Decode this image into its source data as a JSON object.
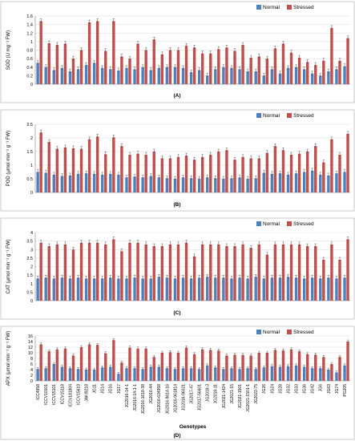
{
  "legend": {
    "normal": "Normal",
    "stressed": "Stressed",
    "position": "top-right"
  },
  "colors": {
    "normal": "#4F81BD",
    "stressed": "#C0504D",
    "grid": "#d9d9d9",
    "axis": "#808080",
    "panel_border": "#a6a6a6"
  },
  "genotypes": [
    "ICC4958",
    "ICCV10101",
    "ICCV15101",
    "ICCV15118",
    "ICCV181804",
    "ICCV15619",
    "JAKI9218",
    "JG11",
    "JG14",
    "JG16",
    "JG17",
    "JG2016-14-1",
    "JG2016-14-1-1",
    "JG2016-1618-38",
    "JG2016-44",
    "JG2016-634958",
    "JG2016-9614-16",
    "JG2016-961814",
    "JG2016-96021",
    "JG2017-47",
    "JG2017-56601",
    "JG2018-3",
    "JG2018-11",
    "JG2021-1424",
    "JG2021-15",
    "JG2021-1501",
    "JG2021-1501-1",
    "JG2022-75",
    "JG26",
    "JG24",
    "JG28",
    "JG32",
    "JG33",
    "JG36",
    "JG42",
    "JG6",
    "JG63",
    "JG74",
    "PG205"
  ],
  "xlabel": "Genotypes",
  "chart_data": [
    {
      "type": "bar",
      "panel_label": "(A)",
      "ylabel": "SOD (U mg⁻¹ FW)",
      "ylim": [
        0,
        1.6
      ],
      "yticks": [
        "0",
        "0.2",
        "0.4",
        "0.6",
        "0.8",
        "1",
        "1.2",
        "1.4",
        "1.6"
      ],
      "tick_values": [
        0,
        0.2,
        0.4,
        0.6,
        0.8,
        1.0,
        1.2,
        1.4,
        1.6
      ],
      "series": [
        {
          "name": "Normal",
          "values": [
            0.5,
            0.4,
            0.33,
            0.38,
            0.3,
            0.35,
            0.45,
            0.5,
            0.38,
            0.35,
            0.32,
            0.38,
            0.35,
            0.4,
            0.33,
            0.38,
            0.4,
            0.4,
            0.38,
            0.28,
            0.33,
            0.2,
            0.35,
            0.4,
            0.38,
            0.35,
            0.3,
            0.3,
            0.2,
            0.35,
            0.25,
            0.38,
            0.4,
            0.35,
            0.25,
            0.2,
            0.3,
            0.35,
            0.42
          ]
        },
        {
          "name": "Stressed",
          "values": [
            1.48,
            0.96,
            0.92,
            0.95,
            0.6,
            0.8,
            1.45,
            1.48,
            0.78,
            1.48,
            0.65,
            0.6,
            0.95,
            0.8,
            1.05,
            0.7,
            0.8,
            0.8,
            0.9,
            0.86,
            0.72,
            0.72,
            0.82,
            0.86,
            0.78,
            0.92,
            0.62,
            0.65,
            0.6,
            0.84,
            0.95,
            0.74,
            0.62,
            0.52,
            0.45,
            0.55,
            1.32,
            0.55,
            1.08
          ]
        }
      ]
    },
    {
      "type": "bar",
      "panel_label": "(B)",
      "ylabel": "POD (μmol min⁻¹ g⁻¹ FW)",
      "ylim": [
        0,
        2.5
      ],
      "yticks": [
        "0",
        "0.5",
        "1",
        "1.5",
        "2",
        "2.5"
      ],
      "tick_values": [
        0,
        0.5,
        1.0,
        1.5,
        2.0,
        2.5
      ],
      "series": [
        {
          "name": "Normal",
          "values": [
            0.75,
            0.72,
            0.65,
            0.6,
            0.62,
            0.68,
            0.7,
            0.68,
            0.65,
            0.68,
            0.65,
            0.55,
            0.58,
            0.55,
            0.6,
            0.55,
            0.52,
            0.5,
            0.55,
            0.52,
            0.5,
            0.55,
            0.52,
            0.5,
            0.52,
            0.55,
            0.5,
            0.52,
            0.72,
            0.68,
            0.7,
            0.65,
            0.7,
            0.75,
            0.8,
            0.65,
            0.62,
            0.7,
            0.75
          ]
        },
        {
          "name": "Stressed",
          "values": [
            2.2,
            1.85,
            1.6,
            1.65,
            1.62,
            1.6,
            1.95,
            2.05,
            1.4,
            2.02,
            1.7,
            1.38,
            1.42,
            1.38,
            1.5,
            1.25,
            1.25,
            1.3,
            1.35,
            1.2,
            1.3,
            1.38,
            1.5,
            1.55,
            1.2,
            1.3,
            1.25,
            1.25,
            1.45,
            1.7,
            1.55,
            1.38,
            1.42,
            1.5,
            1.7,
            1.1,
            1.95,
            1.38,
            2.15
          ]
        }
      ]
    },
    {
      "type": "bar",
      "panel_label": "(C)",
      "ylabel": "CAT (μmol min⁻¹ g⁻¹ FW)",
      "ylim": [
        0,
        4
      ],
      "yticks": [
        "0",
        "0.5",
        "1",
        "1.5",
        "2",
        "2.5",
        "3",
        "3.5",
        "4"
      ],
      "tick_values": [
        0,
        0.5,
        1.0,
        1.5,
        2.0,
        2.5,
        3.0,
        3.5,
        4.0
      ],
      "series": [
        {
          "name": "Normal",
          "values": [
            1.3,
            1.35,
            1.3,
            1.35,
            1.3,
            1.35,
            1.3,
            1.3,
            1.3,
            1.35,
            1.3,
            1.3,
            1.35,
            1.3,
            1.3,
            1.4,
            1.35,
            1.3,
            1.35,
            1.3,
            1.35,
            1.4,
            1.35,
            1.35,
            1.3,
            1.35,
            1.3,
            1.4,
            1.3,
            1.35,
            1.35,
            1.4,
            1.35,
            1.3,
            1.35,
            1.3,
            1.35,
            1.3,
            1.35
          ]
        },
        {
          "name": "Stressed",
          "values": [
            3.4,
            3.2,
            3.3,
            3.3,
            3.0,
            3.4,
            3.4,
            3.4,
            3.3,
            3.6,
            2.9,
            3.4,
            3.4,
            3.3,
            3.2,
            3.2,
            3.3,
            3.3,
            3.4,
            2.6,
            3.3,
            3.3,
            3.3,
            3.2,
            3.2,
            3.3,
            3.1,
            3.3,
            2.7,
            3.3,
            3.3,
            3.3,
            3.3,
            3.2,
            3.2,
            2.4,
            3.3,
            2.4,
            3.6
          ]
        }
      ]
    },
    {
      "type": "bar",
      "panel_label": "(D)",
      "ylabel": "APX (μmol min⁻¹ g⁻¹ FW)",
      "ylim": [
        0,
        16
      ],
      "yticks": [
        "0",
        "2",
        "4",
        "6",
        "8",
        "10",
        "12",
        "14",
        "16"
      ],
      "tick_values": [
        0,
        2,
        4,
        6,
        8,
        10,
        12,
        14,
        16
      ],
      "series": [
        {
          "name": "Normal",
          "values": [
            4.2,
            4.5,
            6.0,
            5.0,
            4.5,
            4.2,
            4.0,
            4.0,
            4.8,
            5.0,
            2.5,
            4.5,
            4.5,
            4.2,
            5.0,
            5.0,
            4.5,
            4.2,
            4.5,
            4.5,
            4.2,
            5.5,
            4.8,
            4.2,
            4.5,
            4.2,
            4.5,
            4.2,
            4.8,
            5.2,
            5.0,
            5.2,
            5.5,
            5.0,
            4.5,
            4.5,
            4.0,
            3.0,
            5.5
          ]
        },
        {
          "name": "Stressed",
          "values": [
            13.0,
            10.5,
            11.2,
            11.5,
            9.0,
            12.0,
            13.0,
            12.8,
            9.8,
            14.5,
            6.5,
            11.8,
            11.5,
            11.5,
            8.5,
            10.0,
            10.2,
            10.0,
            11.8,
            9.5,
            11.2,
            11.0,
            10.8,
            9.0,
            9.3,
            9.2,
            9.0,
            10.0,
            10.0,
            11.0,
            10.8,
            11.2,
            10.5,
            9.5,
            9.3,
            8.5,
            6.0,
            8.5,
            14.0
          ]
        }
      ]
    }
  ]
}
